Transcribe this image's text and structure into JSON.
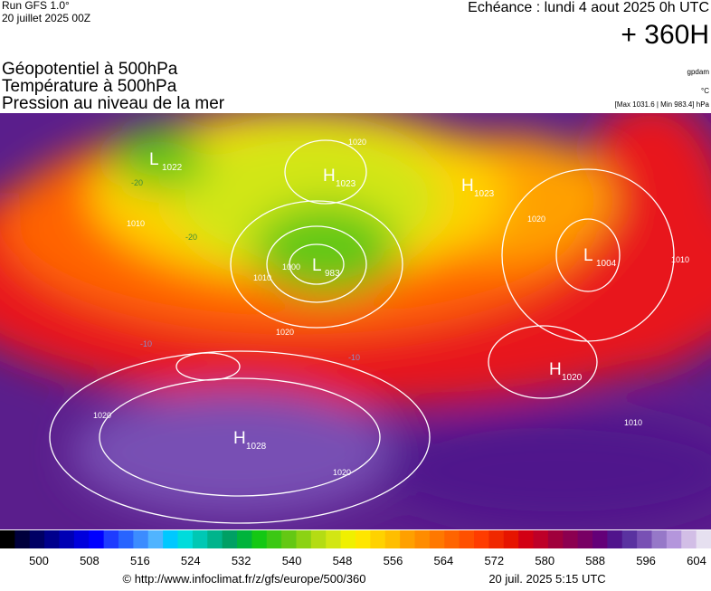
{
  "header": {
    "run": "Run GFS 1.0°",
    "run_date": "20 juillet 2025 00Z",
    "valid": "Echéance : lundi 4 aout 2025 0h UTC",
    "lead": "+ 360H",
    "fields": [
      "Géopotentiel à 500hPa",
      "Température à 500hPa",
      "Pression au niveau de la mer"
    ],
    "units": [
      "gpdam",
      "°C",
      "[Max 1031.6 | Min 983.4] hPa"
    ]
  },
  "map": {
    "centers": [
      {
        "type": "L",
        "pressure": 1022
      },
      {
        "type": "H",
        "pressure": 1023
      },
      {
        "type": "L",
        "pressure": 983
      },
      {
        "type": "H",
        "pressure": 1023
      },
      {
        "type": "L",
        "pressure": 1004
      },
      {
        "type": "H",
        "pressure": 1020
      },
      {
        "type": "H",
        "pressure": 1028
      }
    ],
    "contour_labels": [
      1020,
      1010,
      1000,
      1020,
      1010,
      1020,
      1020,
      1020,
      1010,
      1010,
      -20,
      -10,
      -20,
      -10
    ]
  },
  "colorbar": {
    "labels": [
      500,
      508,
      516,
      524,
      532,
      540,
      548,
      556,
      564,
      572,
      580,
      588,
      596,
      604
    ],
    "colors": [
      "#000000",
      "#00003c",
      "#000064",
      "#00008c",
      "#0000b4",
      "#0000dc",
      "#0000ff",
      "#1e3cff",
      "#2864ff",
      "#3c8cff",
      "#50b4ff",
      "#00c8ff",
      "#00dcdc",
      "#00c8b4",
      "#00b48c",
      "#00a064",
      "#00b43c",
      "#14c814",
      "#3cc814",
      "#64c814",
      "#8cd214",
      "#b4dc14",
      "#d2e614",
      "#f0f000",
      "#ffe600",
      "#ffd200",
      "#ffbe00",
      "#ffa000",
      "#ff8c00",
      "#ff7800",
      "#ff6400",
      "#ff5000",
      "#ff3c00",
      "#f02800",
      "#e61400",
      "#d20014",
      "#be0028",
      "#a0003c",
      "#8c0050",
      "#780064",
      "#640078",
      "#50148c",
      "#5a32a0",
      "#7850b4",
      "#9678c8",
      "#b496dc",
      "#d2bee6",
      "#e6e0f0"
    ]
  },
  "footer": {
    "source": "© http://www.infoclimat.fr/z/gfs/europe/500/360",
    "generated": "20 juil. 2025  5:15 UTC"
  }
}
